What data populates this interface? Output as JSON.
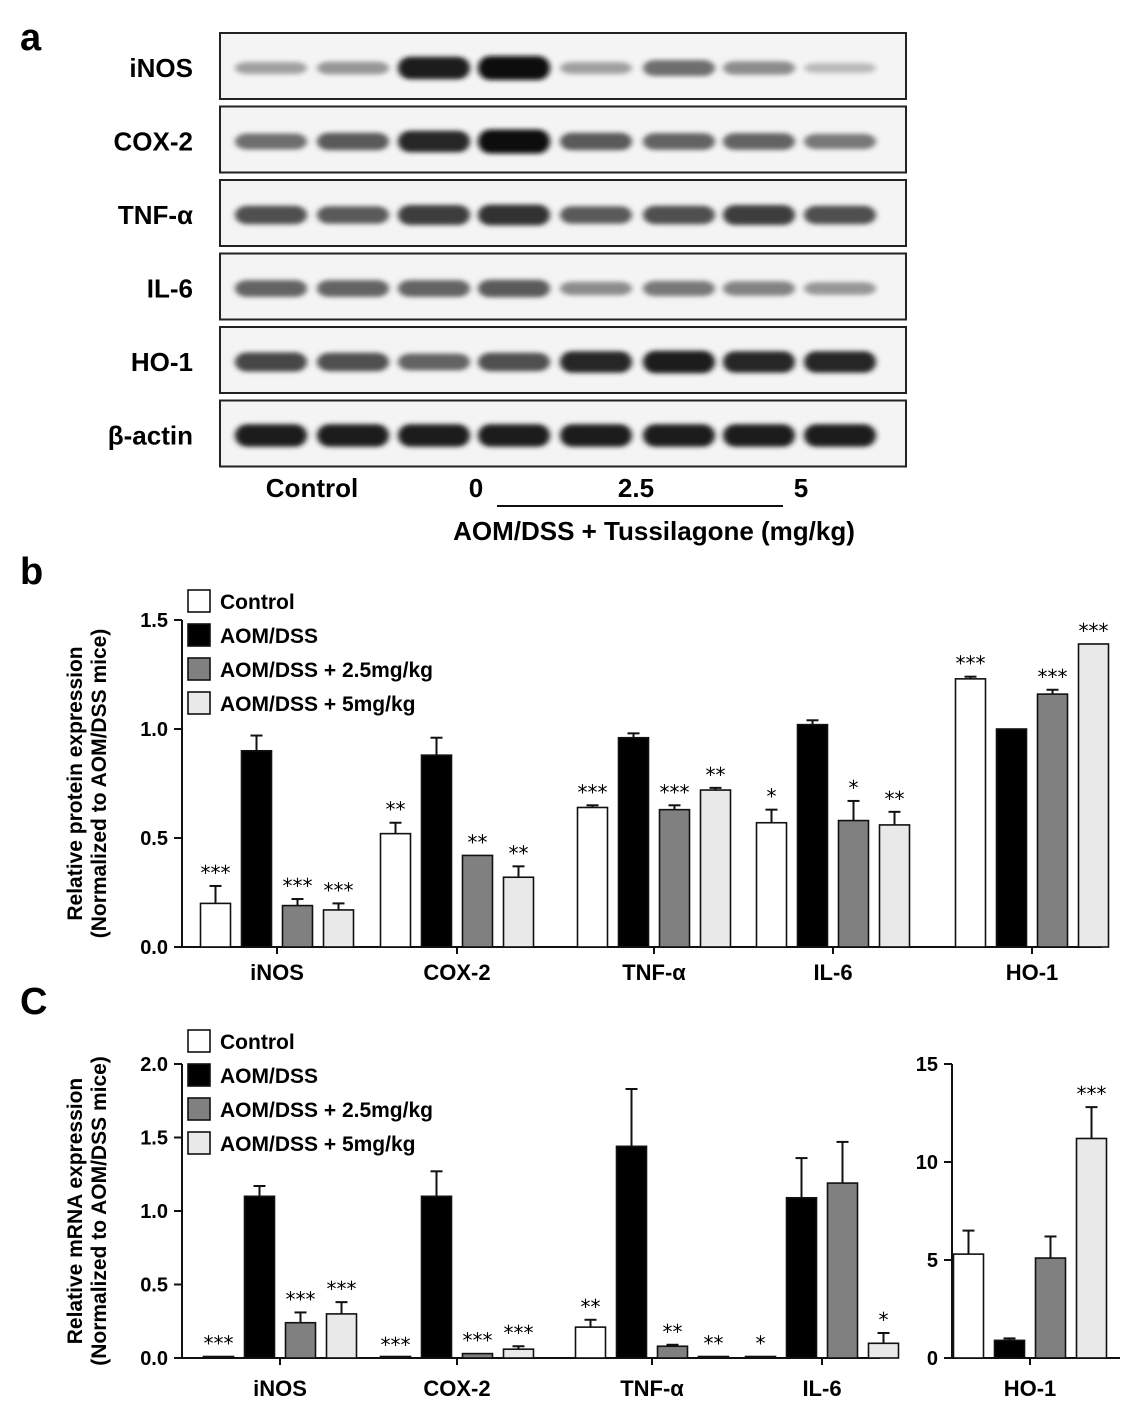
{
  "panels": {
    "a": {
      "letter": "a",
      "rows": [
        {
          "label": "iNOS",
          "intensity": [
            0.25,
            0.3,
            0.9,
            1.0,
            0.25,
            0.5,
            0.35,
            0.12
          ]
        },
        {
          "label": "COX-2",
          "intensity": [
            0.5,
            0.6,
            0.85,
            1.0,
            0.6,
            0.55,
            0.55,
            0.45
          ]
        },
        {
          "label": "TNF-α",
          "intensity": [
            0.65,
            0.6,
            0.75,
            0.8,
            0.6,
            0.65,
            0.75,
            0.65
          ]
        },
        {
          "label": "IL-6",
          "intensity": [
            0.55,
            0.55,
            0.55,
            0.6,
            0.35,
            0.45,
            0.4,
            0.3
          ]
        },
        {
          "label": "HO-1",
          "intensity": [
            0.7,
            0.65,
            0.55,
            0.65,
            0.85,
            0.9,
            0.85,
            0.85
          ]
        },
        {
          "label": "β-actin",
          "intensity": [
            0.9,
            0.9,
            0.9,
            0.9,
            0.9,
            0.9,
            0.9,
            0.9
          ]
        }
      ],
      "lane_labels": [
        "Control",
        "0",
        "2.5",
        "5"
      ],
      "treatment_label": "AOM/DSS + Tussilagone (mg/kg)"
    },
    "b": {
      "letter": "b"
    },
    "c": {
      "letter": "C"
    }
  },
  "chart_data": [
    {
      "type": "bar",
      "panel": "b",
      "categories": [
        "iNOS",
        "COX-2",
        "TNF-α",
        "IL-6",
        "HO-1"
      ],
      "ylabel": [
        "Relative protein expression",
        "(Normalized to AOM/DSS mice)"
      ],
      "ylim": [
        0,
        1.5
      ],
      "yticks": [
        "0.0",
        "0.5",
        "1.0",
        "1.5"
      ],
      "legend": "top-left",
      "series": [
        {
          "name": "Control",
          "color": "#ffffff",
          "values": [
            0.2,
            0.52,
            0.64,
            0.57,
            1.23
          ],
          "errors": [
            0.08,
            0.05,
            0.01,
            0.06,
            0.01
          ],
          "sig": [
            "***",
            "**",
            "***",
            "*",
            "***"
          ]
        },
        {
          "name": "AOM/DSS",
          "color": "#000000",
          "values": [
            0.9,
            0.88,
            0.96,
            1.02,
            1.0
          ],
          "errors": [
            0.07,
            0.08,
            0.02,
            0.02,
            0.0
          ],
          "sig": [
            "",
            "",
            "",
            "",
            ""
          ]
        },
        {
          "name": "AOM/DSS + 2.5mg/kg",
          "color": "#808080",
          "values": [
            0.19,
            0.42,
            0.63,
            0.58,
            1.16
          ],
          "errors": [
            0.03,
            0.0,
            0.02,
            0.09,
            0.02
          ],
          "sig": [
            "***",
            "**",
            "***",
            "*",
            "***"
          ]
        },
        {
          "name": "AOM/DSS + 5mg/kg",
          "color": "#e9e9e9",
          "values": [
            0.17,
            0.32,
            0.72,
            0.56,
            1.39
          ],
          "errors": [
            0.03,
            0.05,
            0.01,
            0.06,
            0.0
          ],
          "sig": [
            "***",
            "**",
            "**",
            "**",
            "***"
          ]
        }
      ]
    },
    {
      "type": "bar",
      "panel": "c",
      "categories": [
        "iNOS",
        "COX-2",
        "TNF-α",
        "IL-6"
      ],
      "ylabel": [
        "Relative mRNA expression",
        "(Normalized to AOM/DSS mice)"
      ],
      "ylim": [
        0,
        2.0
      ],
      "yticks": [
        "0.0",
        "0.5",
        "1.0",
        "1.5",
        "2.0"
      ],
      "legend": "top-left",
      "series": [
        {
          "name": "Control",
          "color": "#ffffff",
          "values": [
            0.01,
            0.0,
            0.21,
            0.01
          ],
          "errors": [
            0.0,
            0.0,
            0.05,
            0.0
          ],
          "sig": [
            "***",
            "***",
            "**",
            "*"
          ]
        },
        {
          "name": "AOM/DSS",
          "color": "#000000",
          "values": [
            1.1,
            1.1,
            1.44,
            1.09
          ],
          "errors": [
            0.07,
            0.17,
            0.39,
            0.27
          ],
          "sig": [
            "",
            "",
            "",
            ""
          ]
        },
        {
          "name": "AOM/DSS + 2.5mg/kg",
          "color": "#808080",
          "values": [
            0.24,
            0.03,
            0.08,
            1.19
          ],
          "errors": [
            0.07,
            0.0,
            0.01,
            0.28
          ],
          "sig": [
            "***",
            "***",
            "**",
            ""
          ]
        },
        {
          "name": "AOM/DSS + 5mg/kg",
          "color": "#e9e9e9",
          "values": [
            0.3,
            0.06,
            0.01,
            0.1
          ],
          "errors": [
            0.08,
            0.02,
            0.0,
            0.07
          ],
          "sig": [
            "***",
            "***",
            "**",
            "*"
          ]
        }
      ]
    },
    {
      "type": "bar",
      "panel": "c-right",
      "categories": [
        "HO-1"
      ],
      "ylim": [
        0,
        15
      ],
      "yticks": [
        "0",
        "5",
        "10",
        "15"
      ],
      "series": [
        {
          "name": "Control",
          "color": "#ffffff",
          "values": [
            5.3
          ],
          "errors": [
            1.2
          ],
          "sig": [
            ""
          ]
        },
        {
          "name": "AOM/DSS",
          "color": "#000000",
          "values": [
            0.9
          ],
          "errors": [
            0.1
          ],
          "sig": [
            ""
          ]
        },
        {
          "name": "AOM/DSS + 2.5mg/kg",
          "color": "#808080",
          "values": [
            5.1
          ],
          "errors": [
            1.1
          ],
          "sig": [
            ""
          ]
        },
        {
          "name": "AOM/DSS + 5mg/kg",
          "color": "#e9e9e9",
          "values": [
            11.2
          ],
          "errors": [
            1.6
          ],
          "sig": [
            "***"
          ]
        }
      ]
    }
  ]
}
